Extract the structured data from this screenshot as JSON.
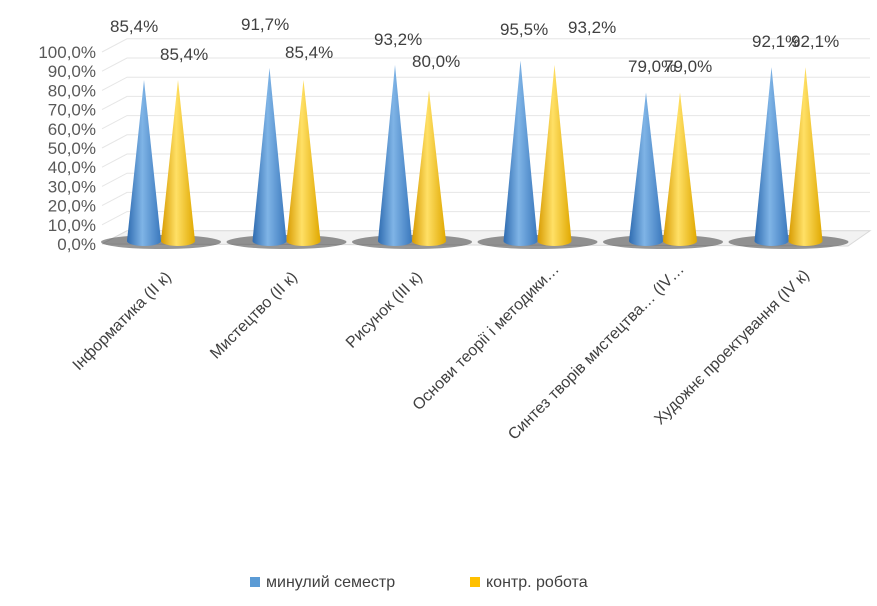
{
  "chart_data": {
    "type": "bar",
    "style": "3d-cone",
    "categories": [
      "Інформатика  (ІІ к)",
      "Мистецтво (ІІ к)",
      "Рисунок (ІІІ к)",
      "Основи теорії і методики…",
      "Синтез творів мистецтва… (IV…",
      "Художнє проектування   (ІV к)"
    ],
    "series": [
      {
        "name": "минулий семестр",
        "color": "#5B9BD5",
        "values": [
          85.4,
          91.7,
          93.2,
          95.5,
          79.0,
          92.1
        ],
        "labels": [
          "85,4%",
          "91,7%",
          "93,2%",
          "95,5%",
          "79,0%",
          "92,1%"
        ]
      },
      {
        "name": "контр. робота",
        "color": "#FFC000",
        "values": [
          85.4,
          85.4,
          80.0,
          93.2,
          79.0,
          92.1
        ],
        "labels": [
          "85,4%",
          "85,4%",
          "80,0%",
          "93,2%",
          "79,0%",
          "92,1%"
        ]
      }
    ],
    "y_ticks": [
      "0,0%",
      "10,0%",
      "20,0%",
      "30,0%",
      "40,0%",
      "50,0%",
      "60,0%",
      "70,0%",
      "80,0%",
      "90,0%",
      "100,0%"
    ],
    "ylim": [
      0,
      100
    ],
    "legend_position": "bottom",
    "grid": true
  }
}
